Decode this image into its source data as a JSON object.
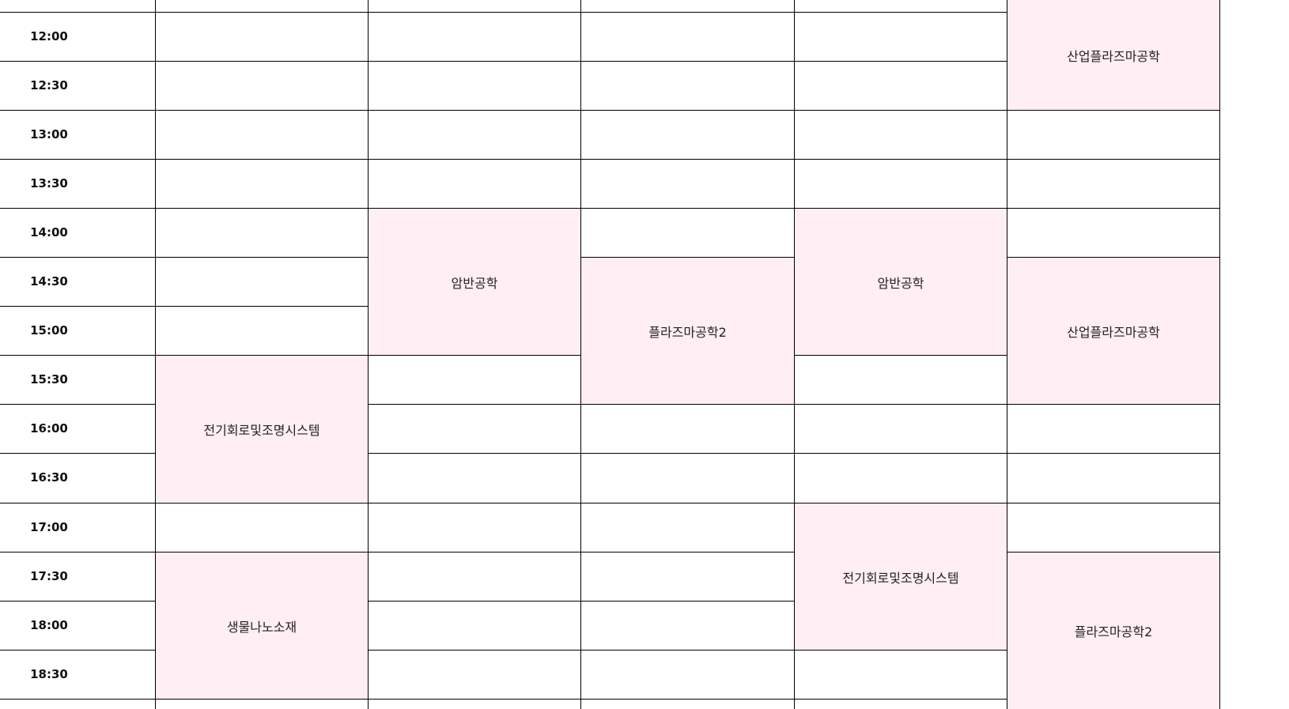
{
  "colors": {
    "course_bg": "#ffeef3",
    "grid_line": "#000000",
    "cell_bg": "#ffffff",
    "time_text": "#111111",
    "course_text": "#222222"
  },
  "times": [
    "12:00",
    "12:30",
    "13:00",
    "13:30",
    "14:00",
    "14:30",
    "15:00",
    "15:30",
    "16:00",
    "16:30",
    "17:00",
    "17:30",
    "18:00",
    "18:30"
  ],
  "courses": [
    {
      "name": "산업플라즈마공학",
      "day": 4,
      "start": -1,
      "span": 3
    },
    {
      "name": "암반공학",
      "day": 1,
      "start": 4,
      "span": 3
    },
    {
      "name": "플라즈마공학2",
      "day": 2,
      "start": 5,
      "span": 3
    },
    {
      "name": "암반공학",
      "day": 3,
      "start": 4,
      "span": 3
    },
    {
      "name": "산업플라즈마공학",
      "day": 4,
      "start": 5,
      "span": 3
    },
    {
      "name": "전기회로및조명시스템",
      "day": 0,
      "start": 7,
      "span": 3
    },
    {
      "name": "전기회로및조명시스템",
      "day": 3,
      "start": 10,
      "span": 3
    },
    {
      "name": "생물나노소재",
      "day": 0,
      "start": 11,
      "span": 3
    },
    {
      "name": "플라즈마공학2",
      "day": 4,
      "start": 11,
      "span": 4
    }
  ]
}
